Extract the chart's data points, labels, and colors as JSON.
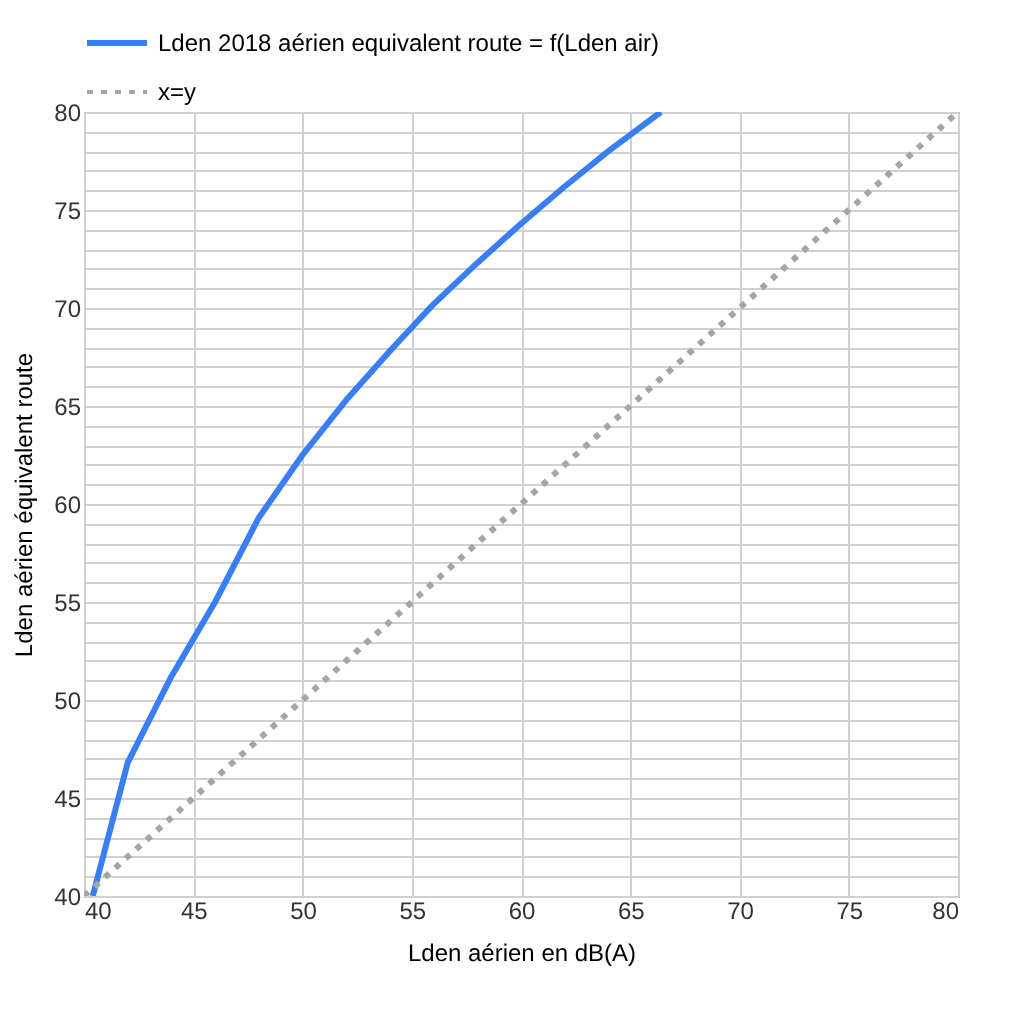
{
  "chart_data": {
    "type": "line",
    "xlabel": "Lden aérien en dB(A)",
    "ylabel": "Lden aérien équivalent route",
    "xlim": [
      40,
      80
    ],
    "ylim": [
      40,
      80
    ],
    "xticks": [
      40,
      45,
      50,
      55,
      60,
      65,
      70,
      75,
      80
    ],
    "yticks": [
      40,
      {
        "value": 41,
        "label": null
      },
      {
        "value": 42,
        "label": null
      },
      {
        "value": 43,
        "label": null
      },
      {
        "value": 44,
        "label": null
      },
      45,
      {
        "value": 46,
        "label": null
      },
      {
        "value": 47,
        "label": null
      },
      {
        "value": 48,
        "label": null
      },
      {
        "value": 49,
        "label": null
      },
      50,
      {
        "value": 51,
        "label": null
      },
      {
        "value": 52,
        "label": null
      },
      {
        "value": 53,
        "label": null
      },
      {
        "value": 54,
        "label": null
      },
      55,
      {
        "value": 56,
        "label": null
      },
      {
        "value": 57,
        "label": null
      },
      {
        "value": 58,
        "label": null
      },
      {
        "value": 59,
        "label": null
      },
      60,
      {
        "value": 61,
        "label": null
      },
      {
        "value": 62,
        "label": null
      },
      {
        "value": 63,
        "label": null
      },
      {
        "value": 64,
        "label": null
      },
      65,
      {
        "value": 66,
        "label": null
      },
      {
        "value": 67,
        "label": null
      },
      {
        "value": 68,
        "label": null
      },
      {
        "value": 69,
        "label": null
      },
      70,
      {
        "value": 71,
        "label": null
      },
      {
        "value": 72,
        "label": null
      },
      {
        "value": 73,
        "label": null
      },
      {
        "value": 74,
        "label": null
      },
      75,
      {
        "value": 76,
        "label": null
      },
      {
        "value": 77,
        "label": null
      },
      {
        "value": 78,
        "label": null
      },
      {
        "value": 79,
        "label": null
      },
      80
    ],
    "grid": true,
    "legend": "top",
    "marker": "none",
    "series": [
      {
        "name": "Lden 2018 aérien equivalent route = f(Lden air)",
        "color": "#3a7ef5",
        "line_style": "solid",
        "x": [
          40.4,
          42,
          44,
          46,
          48,
          50,
          52,
          54,
          56,
          58,
          60,
          62,
          64,
          66.4
        ],
        "values": [
          40,
          46.8,
          51.2,
          55,
          59.3,
          62.5,
          65.3,
          67.8,
          70.2,
          72.3,
          74.3,
          76.2,
          78,
          80
        ]
      },
      {
        "name": "x=y",
        "color": "#a0a8a0",
        "line_style": "dotted",
        "x": [
          40,
          80
        ],
        "values": [
          40,
          80
        ]
      }
    ]
  }
}
